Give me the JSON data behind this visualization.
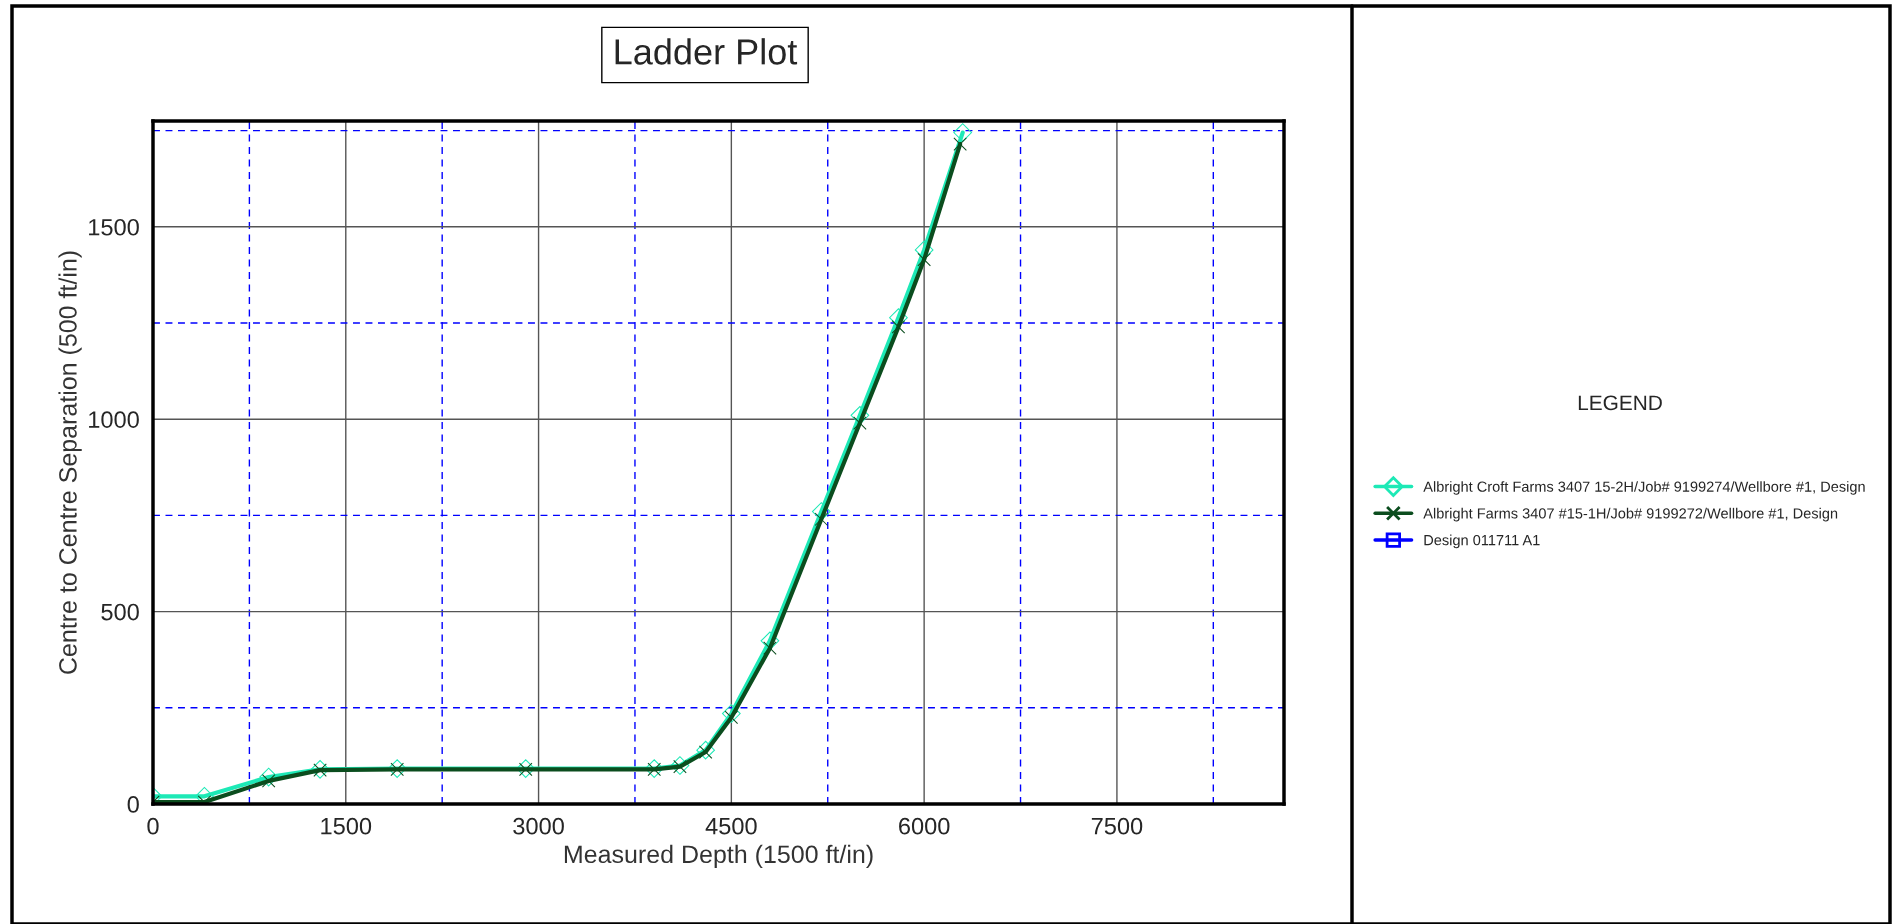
{
  "chart_data": {
    "type": "line",
    "title": "Ladder Plot",
    "xlabel": "Measured Depth (1500 ft/in)",
    "ylabel": "Centre to Centre Separation (500 ft/in)",
    "legend_title": "LEGEND",
    "xlim": [
      0,
      8800
    ],
    "ylim": [
      0,
      1775
    ],
    "xticks": [
      0,
      {
        "value": 750,
        "label": null
      },
      1500,
      {
        "value": 2250,
        "label": null
      },
      3000,
      {
        "value": 3750,
        "label": null
      },
      4500,
      {
        "value": 5250,
        "label": null
      },
      6000,
      {
        "value": 6750,
        "label": null
      },
      7500,
      {
        "value": 8250,
        "label": null
      }
    ],
    "yticks": [
      0,
      {
        "value": 250,
        "label": null
      },
      500,
      {
        "value": 750,
        "label": null
      },
      1000,
      {
        "value": 1250,
        "label": null
      },
      1500,
      {
        "value": 1750,
        "label": null
      }
    ],
    "grid": true,
    "legend": "right",
    "series": [
      {
        "name": "Albright Croft Farms 3407 15-2H/Job# 9199274/Wellbore #1, Design",
        "color": "#1de9b6",
        "marker": "diamond",
        "x": [
          0,
          400,
          900,
          1300,
          1900,
          2900,
          3900,
          4100,
          4300,
          4500,
          4800,
          5200,
          5500,
          5800,
          6000,
          6300
        ],
        "values": [
          20,
          20,
          70,
          90,
          92,
          92,
          92,
          100,
          140,
          235,
          424,
          760,
          1010,
          1264,
          1440,
          1745
        ]
      },
      {
        "name": "Albright Farms 3407 #15-1H/Job# 9199272/Wellbore #1, Design",
        "color": "#0b4d1e",
        "marker": "cross",
        "x": [
          0,
          400,
          900,
          1300,
          1900,
          2900,
          3900,
          4100,
          4300,
          4500,
          4800,
          5200,
          5500,
          5800,
          6000,
          6280
        ],
        "values": [
          5,
          5,
          60,
          88,
          90,
          90,
          90,
          97,
          135,
          225,
          405,
          740,
          990,
          1240,
          1415,
          1715
        ]
      },
      {
        "name": "Design 011711 A1",
        "color": "#0000ff",
        "marker": "square"
      }
    ]
  }
}
